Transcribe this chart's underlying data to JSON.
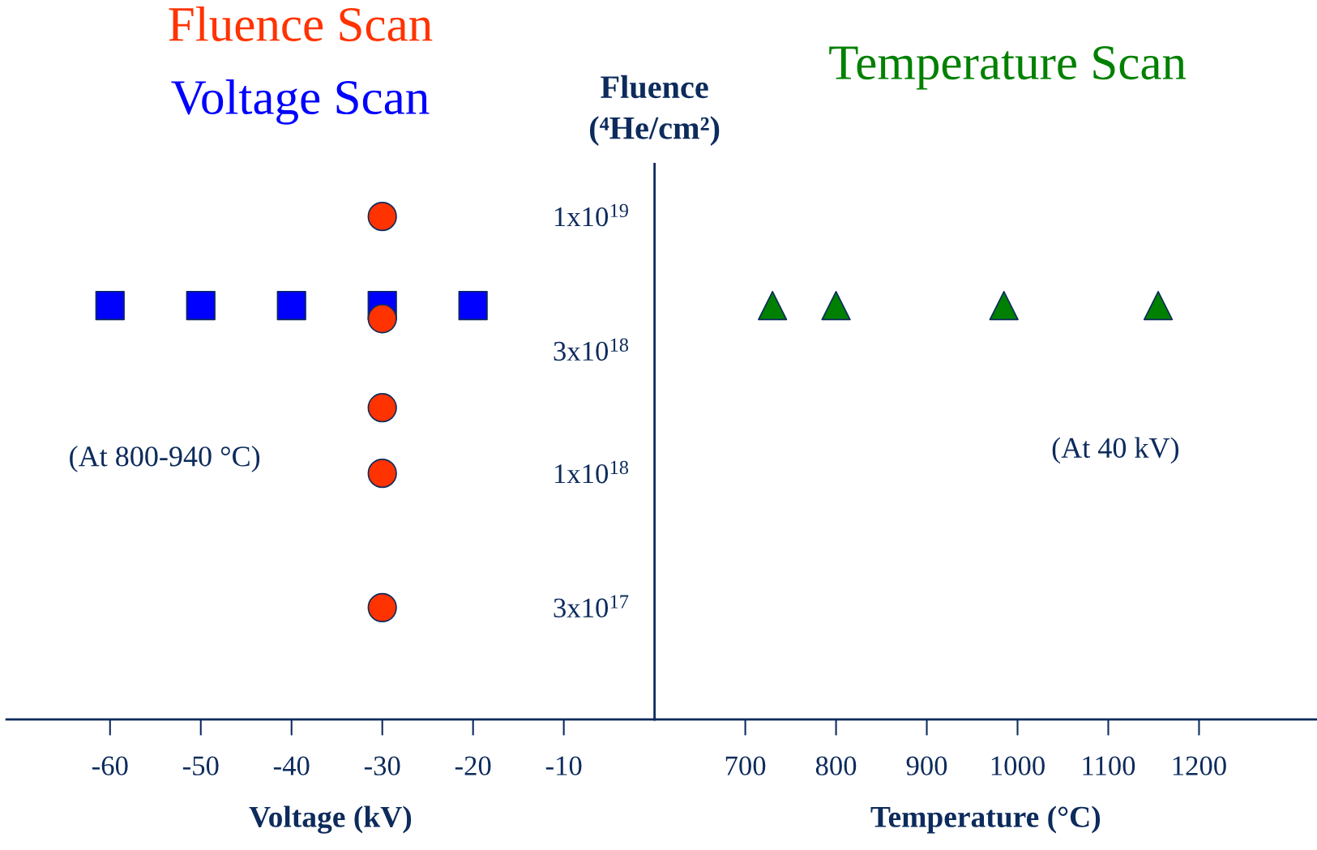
{
  "chart_data": [
    {
      "type": "scatter",
      "xlabel": "Voltage (kV)",
      "log": "y",
      "xlim": [
        -71.4,
        0
      ],
      "xticks": [
        -60,
        -50,
        -40,
        -30,
        -20,
        -10
      ],
      "ylim": [
        1.1e+17,
        1.6e+19
      ],
      "tick_labels": "x",
      "grid": false,
      "annotations": [
        "(At 800-940 °C)"
      ],
      "series": [
        {
          "name": "Voltage Scan",
          "color": "#0000ff",
          "marker": "square",
          "x": [
            -60,
            -50,
            -40,
            -30,
            -20
          ],
          "values": [
            4.5e+18,
            4.5e+18,
            4.5e+18,
            4.5e+18,
            4.5e+18
          ]
        },
        {
          "name": "Fluence Scan",
          "color": "#ff3300",
          "marker": "circle",
          "x": [
            -30,
            -30,
            -30,
            -30,
            -30
          ],
          "values": [
            1e+19,
            4e+18,
            1.8e+18,
            1e+18,
            3e+17
          ]
        }
      ]
    },
    {
      "type": "scatter",
      "xlabel": "Temperature (°C)",
      "ylabel": "Fluence\n(⁴He/cm²)",
      "log": "y",
      "xlim": [
        600,
        1330
      ],
      "xticks": [
        700,
        800,
        900,
        1000,
        1100,
        1200
      ],
      "ylim": [
        1.1e+17,
        1.6e+19
      ],
      "yticks": [
        {
          "value": 3e+17,
          "label": "3x10$^{17}$"
        },
        {
          "value": 1e+18,
          "label": "1x10$^{18}$"
        },
        {
          "value": 3e+18,
          "label": "3x10$^{18}$"
        },
        {
          "value": 1e+19,
          "label": "1x10$^{19}$"
        }
      ],
      "grid": false,
      "annotations": [
        "(At 40 kV)"
      ],
      "series": [
        {
          "name": "Temperature Scan",
          "color": "#008000",
          "marker": "triangle",
          "x": [
            730,
            800,
            985,
            1155
          ],
          "values": [
            4.5e+18,
            4.5e+18,
            4.5e+18,
            4.5e+18
          ]
        }
      ]
    }
  ]
}
